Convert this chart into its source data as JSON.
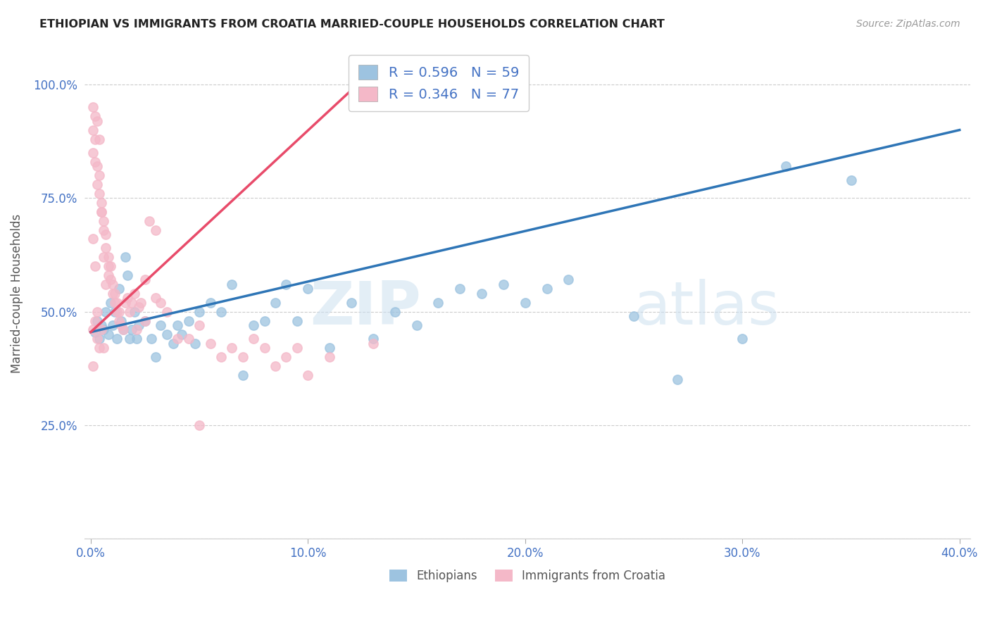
{
  "title": "ETHIOPIAN VS IMMIGRANTS FROM CROATIA MARRIED-COUPLE HOUSEHOLDS CORRELATION CHART",
  "source": "Source: ZipAtlas.com",
  "ylabel": "Married-couple Households",
  "xlim": [
    -0.003,
    0.405
  ],
  "ylim": [
    0.0,
    1.08
  ],
  "xticks": [
    0.0,
    0.1,
    0.2,
    0.3,
    0.4
  ],
  "xticklabels": [
    "0.0%",
    "10.0%",
    "20.0%",
    "30.0%",
    "40.0%"
  ],
  "yticks": [
    0.0,
    0.25,
    0.5,
    0.75,
    1.0
  ],
  "yticklabels": [
    "",
    "25.0%",
    "50.0%",
    "75.0%",
    "100.0%"
  ],
  "blue_color": "#9dc3e0",
  "pink_color": "#f4b8c8",
  "blue_line_color": "#2e75b6",
  "pink_line_color": "#e84b6a",
  "axis_color": "#4472c4",
  "legend_label_blue": "Ethiopians",
  "legend_label_pink": "Immigrants from Croatia",
  "blue_line_x0": 0.0,
  "blue_line_y0": 0.455,
  "blue_line_x1": 0.4,
  "blue_line_y1": 0.9,
  "pink_line_x0": 0.0,
  "pink_line_y0": 0.455,
  "pink_line_x1": 0.125,
  "pink_line_y1": 1.01,
  "blue_scatter_x": [
    0.002,
    0.003,
    0.004,
    0.005,
    0.006,
    0.007,
    0.008,
    0.009,
    0.01,
    0.011,
    0.012,
    0.013,
    0.014,
    0.015,
    0.016,
    0.017,
    0.018,
    0.019,
    0.02,
    0.021,
    0.022,
    0.025,
    0.028,
    0.03,
    0.032,
    0.035,
    0.038,
    0.04,
    0.042,
    0.045,
    0.048,
    0.05,
    0.055,
    0.06,
    0.065,
    0.07,
    0.075,
    0.08,
    0.085,
    0.09,
    0.095,
    0.1,
    0.11,
    0.12,
    0.13,
    0.14,
    0.15,
    0.16,
    0.17,
    0.18,
    0.19,
    0.2,
    0.21,
    0.22,
    0.25,
    0.27,
    0.3,
    0.32,
    0.35
  ],
  "blue_scatter_y": [
    0.455,
    0.48,
    0.44,
    0.47,
    0.46,
    0.5,
    0.45,
    0.52,
    0.47,
    0.5,
    0.44,
    0.55,
    0.48,
    0.46,
    0.62,
    0.58,
    0.44,
    0.46,
    0.5,
    0.44,
    0.47,
    0.48,
    0.44,
    0.4,
    0.47,
    0.45,
    0.43,
    0.47,
    0.45,
    0.48,
    0.43,
    0.5,
    0.52,
    0.5,
    0.56,
    0.36,
    0.47,
    0.48,
    0.52,
    0.56,
    0.48,
    0.55,
    0.42,
    0.52,
    0.44,
    0.5,
    0.47,
    0.52,
    0.55,
    0.54,
    0.56,
    0.52,
    0.55,
    0.57,
    0.49,
    0.35,
    0.44,
    0.82,
    0.79
  ],
  "pink_scatter_x": [
    0.001,
    0.001,
    0.002,
    0.002,
    0.003,
    0.003,
    0.004,
    0.004,
    0.005,
    0.005,
    0.006,
    0.006,
    0.007,
    0.007,
    0.008,
    0.008,
    0.009,
    0.009,
    0.01,
    0.01,
    0.011,
    0.011,
    0.012,
    0.012,
    0.013,
    0.013,
    0.014,
    0.015,
    0.016,
    0.017,
    0.018,
    0.019,
    0.02,
    0.021,
    0.022,
    0.023,
    0.025,
    0.027,
    0.03,
    0.032,
    0.035,
    0.04,
    0.045,
    0.05,
    0.055,
    0.06,
    0.065,
    0.07,
    0.075,
    0.08,
    0.085,
    0.09,
    0.095,
    0.1,
    0.11,
    0.13,
    0.003,
    0.004,
    0.005,
    0.006,
    0.007,
    0.008,
    0.001,
    0.002,
    0.003,
    0.004,
    0.005,
    0.03,
    0.001,
    0.002,
    0.025,
    0.003,
    0.006,
    0.001,
    0.05,
    0.001,
    0.002
  ],
  "pink_scatter_y": [
    0.85,
    0.9,
    0.88,
    0.83,
    0.78,
    0.82,
    0.76,
    0.8,
    0.74,
    0.72,
    0.68,
    0.7,
    0.64,
    0.67,
    0.6,
    0.62,
    0.57,
    0.6,
    0.54,
    0.56,
    0.52,
    0.54,
    0.5,
    0.52,
    0.48,
    0.5,
    0.47,
    0.46,
    0.52,
    0.53,
    0.5,
    0.52,
    0.54,
    0.46,
    0.51,
    0.52,
    0.48,
    0.7,
    0.53,
    0.52,
    0.5,
    0.44,
    0.44,
    0.47,
    0.43,
    0.4,
    0.42,
    0.4,
    0.44,
    0.42,
    0.38,
    0.4,
    0.42,
    0.36,
    0.4,
    0.43,
    0.92,
    0.88,
    0.72,
    0.62,
    0.56,
    0.58,
    0.46,
    0.48,
    0.44,
    0.42,
    0.46,
    0.68,
    0.66,
    0.6,
    0.57,
    0.5,
    0.42,
    0.38,
    0.25,
    0.95,
    0.93
  ]
}
